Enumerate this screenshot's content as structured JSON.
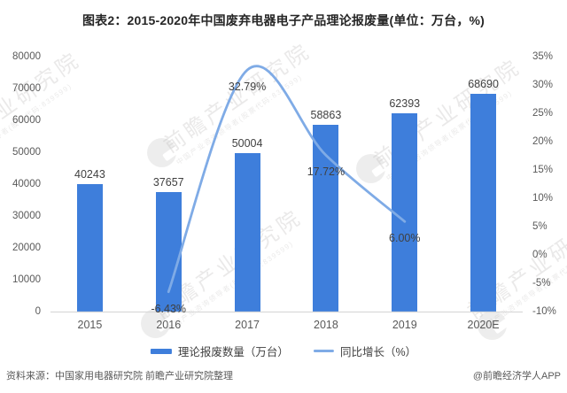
{
  "chart_data": {
    "type": "bar+line combo",
    "title": "图表2：2015-2020年中国废弃电器电子产品理论报废量(单位：万台，%)",
    "categories": [
      "2015",
      "2016",
      "2017",
      "2018",
      "2019",
      "2020E"
    ],
    "series": [
      {
        "name": "理论报废数量（万台）",
        "type": "bar",
        "axis": "left",
        "values": [
          40243,
          37657,
          50004,
          58863,
          62393,
          68690
        ],
        "point_labels": [
          "40243",
          "37657",
          "50004",
          "58863",
          "62393",
          "68690"
        ]
      },
      {
        "name": "同比增长（%）",
        "type": "line",
        "axis": "right",
        "values": [
          null,
          -6.43,
          32.79,
          17.72,
          6.0,
          null
        ],
        "point_labels": [
          null,
          "-6.43%",
          "32.79%",
          "17.72%",
          "6.00%",
          null
        ]
      }
    ],
    "left_axis": {
      "min": 0,
      "max": 80000,
      "step": 10000,
      "ticks": [
        "0",
        "10000",
        "20000",
        "30000",
        "40000",
        "50000",
        "60000",
        "70000",
        "80000"
      ]
    },
    "right_axis": {
      "min": -10,
      "max": 35,
      "step": 5,
      "ticks": [
        "-10%",
        "-5%",
        "0%",
        "5%",
        "10%",
        "15%",
        "20%",
        "25%",
        "30%",
        "35%"
      ]
    },
    "legend_position": "bottom",
    "grid": false
  },
  "watermark": {
    "text": "前瞻产业研究院",
    "subtext": "中国产业咨询领导者(股票代码:839599)"
  },
  "footer": {
    "source": "资料来源：中国家用电器研究院 前瞻产业研究院整理",
    "credit": "@前瞻经济学人APP"
  },
  "colors": {
    "bar": "#3e7edb",
    "line": "#7fabe6",
    "title_text": "#262626",
    "label_text": "#404040",
    "axis_text": "#595959",
    "axis_line": "#d9d9d9",
    "watermark": "#c0bfbe"
  }
}
